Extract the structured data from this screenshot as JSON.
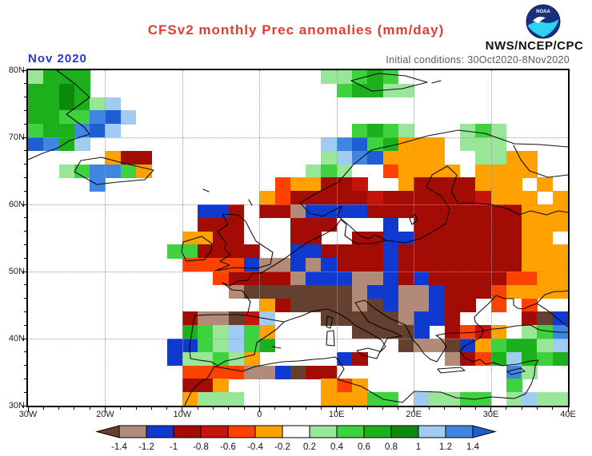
{
  "header": {
    "title": "CFSv2 monthly Prec anomalies (mm/day)",
    "org": "NWS/NCEP/CPC",
    "logo": "NOAA",
    "period_label": "Nov 2020",
    "init_conditions_label": "Initial conditions:",
    "init_conditions_value": "30Oct2020-8Nov2020"
  },
  "colors": {
    "title": "#e23d32",
    "period": "#2438d6",
    "init": "#5a5a5a",
    "org": "#111111",
    "grid_dots": "#9a9a9a"
  },
  "map": {
    "lat_ticks": [
      "80N",
      "70N",
      "60N",
      "50N",
      "40N",
      "30N"
    ],
    "lon_ticks": [
      "30W",
      "20W",
      "10W",
      "0",
      "10E",
      "20E",
      "30E",
      "40E"
    ],
    "cols": 35,
    "rows": 25,
    "cell_degrees": 2,
    "palette": {
      "K": "#634030",
      "T": "#b28a78",
      "B": "#0e3ad0",
      "D": "#a30c04",
      "R": "#c5150a",
      "O": "#fd4100",
      "o": "#ffa101",
      "g": "#99e699",
      "G": "#3ed23e",
      "M": "#1cb01c",
      "F": "#0b8a0b",
      "c": "#9fccf0",
      "C": "#3f86e0",
      "E": "#1d5fd2"
    },
    "grid": [
      "gMMM...............ggGMG...........",
      "MMFM................GMMgg..........",
      "MMFMgc.............................",
      "MMGGCEc............................",
      "GMMCEc...............GMGg...gGg....",
      "ECMc...............cCEGMooo.ggg....",
      ".....oDD...........gcCEoooo..ggoo..",
      "..gGCCGo..........gGg..Ooooo.oooo..",
      "....C...........OooDDR..oDDDDooo.o.",
      "...............oODDDDDRDDDDDDRooo.o",
      "...........BBD.DDTBBBBDDDDDDDDDDooo",
      "...........DDD...DDD...B.DDDDDDDooo",
      "..........ooDD...DD..DDBBDDDDDDDoo.",
      ".........GGDDDD..BBDDDDBDDDDDDDDooo",
      "..........OOOOBTTBTBDDDBDDDDDDDDooo",
      "............ODDDDTBBBTTBDBDDDDDOOoo",
      ".............TKKKKKKKTBBTTBDDDOoooo",
      "...............oDKKKKTKBTTBDD.O.O..",
      "..........DTTKRc...KKKKKTBBD....DKB",
      "..........MGgcGo.....KKKKB.DORo.gGC",
      ".........BBGgcGM........KTTKBoGMMgc",
      ".........BggGgo.....BD.....TDOMcMGM",
      "..........OOOOTTBKDD...........Cg..",
      "..........DDo......oOo.........G...",
      "..........oggg.....oooGG.cggGG.gcgg"
    ]
  },
  "colorbar": {
    "tick_labels": [
      "-1.4",
      "-1.2",
      "-1",
      "-0.8",
      "-0.6",
      "-0.4",
      "-0.2",
      "0.2",
      "0.4",
      "0.6",
      "0.8",
      "1",
      "1.2",
      "1.4"
    ],
    "segment_colors": [
      "#b28a78",
      "#0e3ad0",
      "#a30c04",
      "#c5150a",
      "#fd4100",
      "#ffa101",
      "#ffffff",
      "#99e699",
      "#3ed23e",
      "#1cb01c",
      "#0b8a0b",
      "#9fccf0",
      "#3f86e0"
    ],
    "left_arrow_color": "#634030",
    "right_arrow_color": "#1d5fd2"
  }
}
